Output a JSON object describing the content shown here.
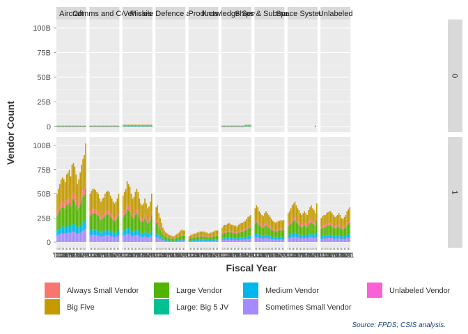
{
  "chart_data": {
    "type": "bar",
    "stacked": true,
    "xlabel": "Fiscal Year",
    "ylabel": "Vendor Count",
    "caption": "Source: FPDS; CSIS analysis.",
    "ylim": [
      0,
      105
    ],
    "y_ticks": [
      0,
      25,
      50,
      75,
      100
    ],
    "y_tick_labels": [
      "0",
      "25B",
      "50B",
      "75B",
      "100B"
    ],
    "x_tick_labels": [
      "'00",
      "'01",
      "'02",
      "'03",
      "'04",
      "'05",
      "'06",
      "'07",
      "'08",
      "'09",
      "'10",
      "'11",
      "'12",
      "'13",
      "'14",
      "'15",
      "'16",
      "'17",
      "'18",
      "'19",
      "'20",
      "'21"
    ],
    "grid": true,
    "legend_position": "bottom",
    "facet_cols": [
      "Aircraft",
      "Comms and Comp",
      "Vehicles",
      "Missile Defence and Mil",
      "Products",
      "Knowledge Services",
      "Ships & Submarines",
      "Space Systems",
      "Unlabeled"
    ],
    "facet_rows": [
      "0",
      "1"
    ],
    "series": [
      {
        "name": "Always Small Vendor",
        "color": "#F8766D"
      },
      {
        "name": "Big Five",
        "color": "#C49A00"
      },
      {
        "name": "Large Vendor",
        "color": "#53B400"
      },
      {
        "name": "Large: Big 5 JV",
        "color": "#00C094"
      },
      {
        "name": "Medium Vendor",
        "color": "#00B6EB"
      },
      {
        "name": "Sometimes Small Vendor",
        "color": "#A58AFF"
      },
      {
        "name": "Unlabeled Vendor",
        "color": "#FB61D7"
      }
    ],
    "panels": {
      "0": {
        "Aircraft": {
          "total": [
            1,
            1,
            1,
            1,
            1,
            1,
            1,
            1,
            1,
            1,
            1,
            1,
            1,
            1,
            1,
            1,
            1,
            1,
            1,
            1,
            1,
            1
          ]
        },
        "Comms and Comp": {
          "total": [
            1,
            1,
            1,
            1,
            1,
            1,
            1,
            1,
            1,
            1,
            1,
            1,
            1,
            1,
            1,
            1,
            1,
            1,
            1,
            1,
            1,
            1
          ]
        },
        "Vehicles": {
          "total": [
            2,
            2,
            2,
            2,
            2,
            2,
            2,
            2,
            2,
            2,
            2,
            2,
            2,
            2,
            2,
            2,
            2,
            2,
            2,
            2,
            2,
            2
          ]
        },
        "Missile Defence and Mil": {
          "total": [
            0,
            0,
            0,
            0,
            0,
            0,
            0,
            0,
            0,
            0,
            0,
            0,
            0,
            0,
            0,
            0,
            0,
            0,
            0,
            0,
            0,
            0
          ]
        },
        "Products": {
          "total": [
            0,
            0,
            0,
            0,
            0,
            0,
            0,
            0,
            0,
            0,
            0,
            0,
            0,
            0,
            0,
            0,
            0,
            0,
            0,
            0,
            0,
            0
          ]
        },
        "Knowledge Services": {
          "total": [
            1,
            1,
            1,
            1,
            1,
            1,
            1,
            1,
            1,
            1,
            1,
            1,
            1,
            1,
            1,
            1,
            1,
            2,
            2,
            2,
            2,
            2
          ]
        },
        "Ships & Submarines": {
          "total": [
            0,
            0,
            0,
            0,
            0,
            0,
            0,
            0,
            0,
            0,
            0,
            0,
            0,
            0,
            0,
            0,
            0,
            0,
            0,
            0,
            0,
            0
          ]
        },
        "Space Systems": {
          "total": [
            0,
            0,
            0,
            0,
            0,
            0,
            0,
            0,
            0,
            0,
            0,
            0,
            0,
            0,
            0,
            0,
            0,
            0,
            0,
            0,
            1,
            0
          ]
        },
        "Unlabeled": {
          "total": [
            0,
            0,
            0,
            0,
            0,
            0,
            0,
            0,
            0,
            0,
            0,
            0,
            0,
            0,
            0,
            0,
            0,
            0,
            0,
            0,
            0,
            0
          ]
        }
      },
      "1": {
        "Aircraft": {
          "total": [
            50,
            55,
            60,
            65,
            67,
            65,
            62,
            70,
            72,
            75,
            68,
            80,
            82,
            78,
            70,
            60,
            65,
            72,
            80,
            86,
            90,
            102
          ]
        },
        "Comms and Comp": {
          "total": [
            50,
            53,
            55,
            55,
            54,
            52,
            50,
            45,
            42,
            45,
            46,
            50,
            52,
            53,
            52,
            48,
            45,
            42,
            40,
            42,
            45,
            50
          ]
        },
        "Vehicles": {
          "total": [
            48,
            52,
            55,
            63,
            60,
            57,
            50,
            45,
            47,
            52,
            55,
            52,
            45,
            40,
            38,
            40,
            45,
            40,
            35,
            37,
            42,
            50
          ]
        },
        "Missile Defence and Mil": {
          "total": [
            36,
            38,
            30,
            25,
            20,
            15,
            12,
            10,
            9,
            8,
            7,
            7,
            6,
            6,
            7,
            8,
            9,
            10,
            12,
            13,
            12,
            12
          ]
        },
        "Products": {
          "total": [
            6,
            7,
            8,
            8,
            9,
            9,
            10,
            10,
            11,
            11,
            11,
            11,
            10,
            10,
            9,
            9,
            10,
            10,
            11,
            12,
            12,
            12
          ]
        },
        "Knowledge Services": {
          "total": [
            15,
            17,
            18,
            18,
            19,
            20,
            19,
            18,
            18,
            17,
            17,
            16,
            18,
            19,
            20,
            20,
            21,
            22,
            24,
            26,
            27,
            28
          ]
        },
        "Ships & Submarines": {
          "total": [
            35,
            38,
            36,
            32,
            30,
            28,
            27,
            30,
            32,
            30,
            28,
            26,
            24,
            22,
            21,
            20,
            21,
            22,
            22,
            23,
            22,
            23
          ]
        },
        "Space Systems": {
          "total": [
            30,
            32,
            35,
            38,
            40,
            42,
            38,
            35,
            33,
            30,
            28,
            30,
            32,
            30,
            28,
            33,
            36,
            38,
            35,
            33,
            30,
            40
          ]
        },
        "Unlabeled": {
          "total": [
            25,
            27,
            28,
            28,
            30,
            31,
            32,
            32,
            30,
            28,
            26,
            27,
            28,
            30,
            28,
            25,
            24,
            26,
            28,
            32,
            34,
            36
          ]
        }
      }
    }
  }
}
